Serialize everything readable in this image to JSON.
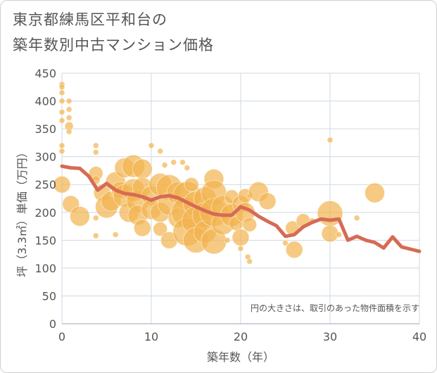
{
  "title_lines": [
    "東京都練馬区平和台の",
    "築年数別中古マンション価格"
  ],
  "colors": {
    "bubble": "#f2b44f",
    "line": "#d66b55",
    "grid": "#cfd8e3",
    "text": "#555555"
  },
  "chart_data": {
    "type": "scatter",
    "xlabel": "築年数（年）",
    "ylabel": "坪（3.3㎡）単価（万円）",
    "xlim": [
      0,
      40
    ],
    "ylim": [
      0,
      450
    ],
    "xticks": [
      0,
      10,
      20,
      30,
      40
    ],
    "yticks": [
      0,
      50,
      100,
      150,
      200,
      250,
      300,
      350,
      400,
      450
    ],
    "grid": true,
    "annotation": "円の大きさは、取引のあった物件面積を示す",
    "bubbles": [
      {
        "x": 0,
        "y": 430,
        "s": 2
      },
      {
        "x": 0,
        "y": 425,
        "s": 2
      },
      {
        "x": 0,
        "y": 415,
        "s": 2
      },
      {
        "x": 0,
        "y": 400,
        "s": 2
      },
      {
        "x": 0,
        "y": 380,
        "s": 2
      },
      {
        "x": 0,
        "y": 365,
        "s": 2
      },
      {
        "x": 0,
        "y": 320,
        "s": 2
      },
      {
        "x": 0,
        "y": 310,
        "s": 2
      },
      {
        "x": 0,
        "y": 250,
        "s": 6
      },
      {
        "x": 0.8,
        "y": 400,
        "s": 2
      },
      {
        "x": 0.8,
        "y": 385,
        "s": 2
      },
      {
        "x": 0.8,
        "y": 370,
        "s": 2
      },
      {
        "x": 0.8,
        "y": 355,
        "s": 3
      },
      {
        "x": 0.8,
        "y": 345,
        "s": 2
      },
      {
        "x": 1,
        "y": 215,
        "s": 6
      },
      {
        "x": 2,
        "y": 193,
        "s": 7
      },
      {
        "x": 3.8,
        "y": 320,
        "s": 2
      },
      {
        "x": 3.8,
        "y": 308,
        "s": 2
      },
      {
        "x": 3.8,
        "y": 270,
        "s": 5
      },
      {
        "x": 3.8,
        "y": 258,
        "s": 3
      },
      {
        "x": 3.8,
        "y": 190,
        "s": 2
      },
      {
        "x": 3.8,
        "y": 158,
        "s": 2
      },
      {
        "x": 4.5,
        "y": 235,
        "s": 6
      },
      {
        "x": 5,
        "y": 210,
        "s": 8
      },
      {
        "x": 5.5,
        "y": 220,
        "s": 7
      },
      {
        "x": 6,
        "y": 255,
        "s": 7
      },
      {
        "x": 6,
        "y": 160,
        "s": 2
      },
      {
        "x": 6.5,
        "y": 240,
        "s": 6
      },
      {
        "x": 7,
        "y": 280,
        "s": 7
      },
      {
        "x": 7,
        "y": 230,
        "s": 8
      },
      {
        "x": 7.5,
        "y": 200,
        "s": 7
      },
      {
        "x": 8,
        "y": 283,
        "s": 8
      },
      {
        "x": 8,
        "y": 240,
        "s": 8
      },
      {
        "x": 8.5,
        "y": 220,
        "s": 8
      },
      {
        "x": 8.5,
        "y": 195,
        "s": 7
      },
      {
        "x": 9,
        "y": 278,
        "s": 7
      },
      {
        "x": 9,
        "y": 245,
        "s": 7
      },
      {
        "x": 9,
        "y": 172,
        "s": 6
      },
      {
        "x": 10,
        "y": 320,
        "s": 2
      },
      {
        "x": 10,
        "y": 230,
        "s": 7
      },
      {
        "x": 10,
        "y": 205,
        "s": 7
      },
      {
        "x": 11,
        "y": 310,
        "s": 2
      },
      {
        "x": 11,
        "y": 250,
        "s": 8
      },
      {
        "x": 11,
        "y": 200,
        "s": 7
      },
      {
        "x": 11,
        "y": 170,
        "s": 5
      },
      {
        "x": 11.5,
        "y": 285,
        "s": 2
      },
      {
        "x": 12,
        "y": 245,
        "s": 9
      },
      {
        "x": 12,
        "y": 215,
        "s": 8
      },
      {
        "x": 12,
        "y": 150,
        "s": 6
      },
      {
        "x": 12.5,
        "y": 290,
        "s": 2
      },
      {
        "x": 13,
        "y": 235,
        "s": 8
      },
      {
        "x": 13,
        "y": 190,
        "s": 7
      },
      {
        "x": 13.5,
        "y": 290,
        "s": 2
      },
      {
        "x": 14,
        "y": 280,
        "s": 2
      },
      {
        "x": 14,
        "y": 230,
        "s": 10
      },
      {
        "x": 14,
        "y": 200,
        "s": 11
      },
      {
        "x": 14,
        "y": 165,
        "s": 10
      },
      {
        "x": 14.5,
        "y": 250,
        "s": 5
      },
      {
        "x": 15,
        "y": 215,
        "s": 9
      },
      {
        "x": 15,
        "y": 185,
        "s": 10
      },
      {
        "x": 15,
        "y": 150,
        "s": 9
      },
      {
        "x": 16,
        "y": 225,
        "s": 8
      },
      {
        "x": 16,
        "y": 195,
        "s": 9
      },
      {
        "x": 16,
        "y": 165,
        "s": 8
      },
      {
        "x": 17,
        "y": 260,
        "s": 7
      },
      {
        "x": 17,
        "y": 235,
        "s": 9
      },
      {
        "x": 17,
        "y": 200,
        "s": 10
      },
      {
        "x": 17,
        "y": 148,
        "s": 9
      },
      {
        "x": 18,
        "y": 210,
        "s": 8
      },
      {
        "x": 18,
        "y": 180,
        "s": 8
      },
      {
        "x": 18.5,
        "y": 150,
        "s": 2
      },
      {
        "x": 19,
        "y": 228,
        "s": 5
      },
      {
        "x": 19,
        "y": 195,
        "s": 8
      },
      {
        "x": 19.5,
        "y": 180,
        "s": 5
      },
      {
        "x": 20,
        "y": 215,
        "s": 6
      },
      {
        "x": 20,
        "y": 155,
        "s": 6
      },
      {
        "x": 20,
        "y": 135,
        "s": 2
      },
      {
        "x": 20.5,
        "y": 230,
        "s": 5
      },
      {
        "x": 20.5,
        "y": 200,
        "s": 7
      },
      {
        "x": 20.8,
        "y": 120,
        "s": 2
      },
      {
        "x": 21,
        "y": 230,
        "s": 2
      },
      {
        "x": 21,
        "y": 178,
        "s": 5
      },
      {
        "x": 21,
        "y": 112,
        "s": 2
      },
      {
        "x": 22,
        "y": 237,
        "s": 7
      },
      {
        "x": 23,
        "y": 220,
        "s": 6
      },
      {
        "x": 25,
        "y": 145,
        "s": 2
      },
      {
        "x": 25.8,
        "y": 172,
        "s": 5
      },
      {
        "x": 26,
        "y": 133,
        "s": 6
      },
      {
        "x": 27,
        "y": 185,
        "s": 5
      },
      {
        "x": 28,
        "y": 185,
        "s": 2
      },
      {
        "x": 30,
        "y": 330,
        "s": 2
      },
      {
        "x": 30,
        "y": 198,
        "s": 9
      },
      {
        "x": 30,
        "y": 162,
        "s": 6
      },
      {
        "x": 31,
        "y": 160,
        "s": 2
      },
      {
        "x": 33,
        "y": 190,
        "s": 2
      },
      {
        "x": 35,
        "y": 235,
        "s": 7
      }
    ],
    "series": [
      {
        "type": "line",
        "x": [
          0,
          1,
          2,
          3,
          4,
          5,
          6,
          7,
          8,
          9,
          10,
          11,
          12,
          13,
          14,
          15,
          16,
          17,
          18,
          19,
          20,
          21,
          22,
          23,
          24,
          25,
          26,
          27,
          28,
          29,
          30,
          31,
          32,
          33,
          34,
          35,
          36,
          37,
          38,
          39,
          40
        ],
        "y": [
          283,
          280,
          279,
          265,
          240,
          252,
          240,
          234,
          232,
          228,
          222,
          228,
          230,
          226,
          218,
          210,
          203,
          197,
          195,
          195,
          210,
          204,
          193,
          184,
          176,
          157,
          160,
          174,
          182,
          188,
          186,
          188,
          150,
          157,
          150,
          146,
          136,
          156,
          138,
          134,
          130
        ]
      }
    ]
  }
}
